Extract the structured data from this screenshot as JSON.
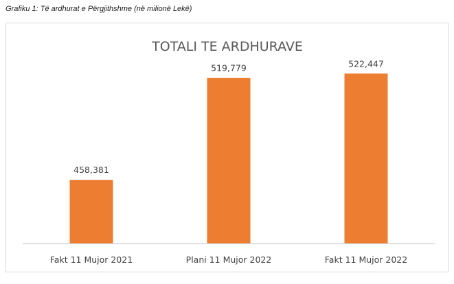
{
  "caption": "Grafiku 1: Të ardhurat e Përgjithshme (në milionë Lekë)",
  "chart_data": {
    "type": "bar",
    "title": "TOTALI TE ARDHURAVE",
    "categories": [
      "Fakt 11 Mujor 2021",
      "Plani 11 Mujor 2022",
      "Fakt 11 Mujor 2022"
    ],
    "values": [
      458381,
      519779,
      522447
    ],
    "data_labels": [
      "458,381",
      "519,779",
      "522,447"
    ],
    "ylim": [
      420000,
      530000
    ],
    "grid": false,
    "legend": "none",
    "colors": {
      "bar": "#ED7D31",
      "axis": "#BFBFBF",
      "frame": "#D9D9D9"
    }
  }
}
